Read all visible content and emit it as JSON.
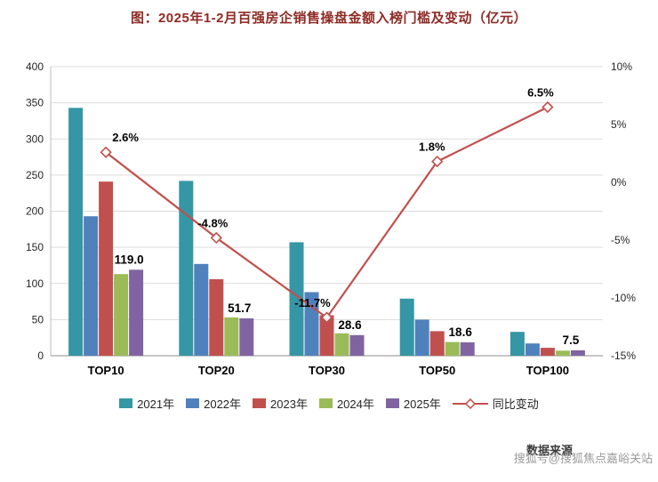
{
  "title": "图：2025年1-2月百强房企销售操盘金额入榜门槛及变动（亿元）",
  "source_text": "数据来源",
  "watermark": "搜狐号@搜狐焦点嘉峪关站",
  "chart_data": {
    "type": "bar",
    "subtype": "grouped bars with secondary-axis line",
    "categories": [
      "TOP10",
      "TOP20",
      "TOP30",
      "TOP50",
      "TOP100"
    ],
    "series": [
      {
        "name": "2021年",
        "type": "bar",
        "color": "#3596a5",
        "values": [
          343,
          242,
          157,
          79,
          33
        ]
      },
      {
        "name": "2022年",
        "type": "bar",
        "color": "#4f81bd",
        "values": [
          193,
          127,
          88,
          50,
          17
        ]
      },
      {
        "name": "2023年",
        "type": "bar",
        "color": "#c0504d",
        "values": [
          241,
          106,
          56,
          34,
          11
        ]
      },
      {
        "name": "2024年",
        "type": "bar",
        "color": "#9bbb59",
        "values": [
          113,
          53,
          31,
          19,
          7
        ]
      },
      {
        "name": "2025年",
        "type": "bar",
        "color": "#8064a2",
        "values": [
          119.0,
          51.7,
          28.6,
          18.6,
          7.5
        ],
        "labels": [
          "119.0",
          "51.7",
          "28.6",
          "18.6",
          "7.5"
        ]
      }
    ],
    "line_series": {
      "name": "同比变动",
      "type": "line",
      "color": "#c0504d",
      "marker": "hollow-diamond",
      "axis": "right",
      "values": [
        2.6,
        -4.8,
        -11.7,
        1.8,
        6.5
      ],
      "labels": [
        "2.6%",
        "-4.8%",
        "-11.7%",
        "1.8%",
        "6.5%"
      ]
    },
    "left_axis": {
      "min": 0,
      "max": 400,
      "step": 50,
      "ticks": [
        "0",
        "50",
        "100",
        "150",
        "200",
        "250",
        "300",
        "350",
        "400"
      ]
    },
    "right_axis": {
      "min": -15,
      "max": 10,
      "step": 5,
      "ticks_top_to_bottom": [
        "10%",
        "5%",
        "0%",
        "-5%",
        "-10%",
        "-15%"
      ]
    },
    "grid": true,
    "legend_position": "bottom"
  }
}
